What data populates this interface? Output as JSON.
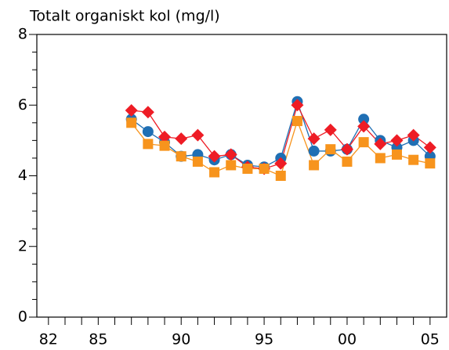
{
  "chart_data": {
    "type": "line",
    "title": "Totalt organiskt kol (mg/l)",
    "x": [
      1987,
      1988,
      1989,
      1990,
      1991,
      1992,
      1993,
      1994,
      1995,
      1996,
      1997,
      1998,
      1999,
      2000,
      2001,
      2002,
      2003,
      2004,
      2005
    ],
    "series": [
      {
        "color": "#1f6fb4",
        "marker": "circle",
        "values": [
          5.6,
          5.25,
          4.95,
          4.55,
          4.6,
          4.45,
          4.6,
          4.3,
          4.25,
          4.5,
          6.1,
          4.7,
          4.7,
          4.75,
          5.6,
          5.0,
          4.8,
          5.0,
          4.55
        ]
      },
      {
        "color": "#ee1c25",
        "marker": "diamond",
        "values": [
          5.85,
          5.8,
          5.1,
          5.05,
          5.15,
          4.55,
          4.6,
          4.25,
          4.2,
          4.35,
          6.0,
          5.05,
          5.3,
          4.75,
          5.4,
          4.9,
          5.0,
          5.15,
          4.8
        ]
      },
      {
        "color": "#f7941d",
        "marker": "square",
        "values": [
          5.5,
          4.9,
          4.85,
          4.55,
          4.4,
          4.1,
          4.3,
          4.2,
          4.2,
          4.0,
          5.55,
          4.3,
          4.75,
          4.4,
          4.95,
          4.5,
          4.6,
          4.45,
          4.35
        ]
      }
    ],
    "xlim": [
      1981.3,
      2006
    ],
    "xticks": [
      {
        "value": 1982,
        "label": "82"
      },
      {
        "value": 1985,
        "label": "85"
      },
      {
        "value": 1990,
        "label": "90"
      },
      {
        "value": 1995,
        "label": "95"
      },
      {
        "value": 2000,
        "label": "00"
      },
      {
        "value": 2005,
        "label": "05"
      }
    ],
    "xminor_ticks": [
      1983,
      1984,
      1986,
      1987,
      1988,
      1989,
      1991,
      1992,
      1993,
      1994,
      1996,
      1997,
      1998,
      1999,
      2001,
      2002,
      2003,
      2004
    ],
    "ylim": [
      0,
      8
    ],
    "yticks": [
      0,
      2,
      4,
      6,
      8
    ],
    "yminor_ticks": [
      0.5,
      1,
      1.5,
      2.5,
      3,
      3.5,
      4.5,
      5,
      5.5,
      6.5,
      7,
      7.5
    ]
  }
}
